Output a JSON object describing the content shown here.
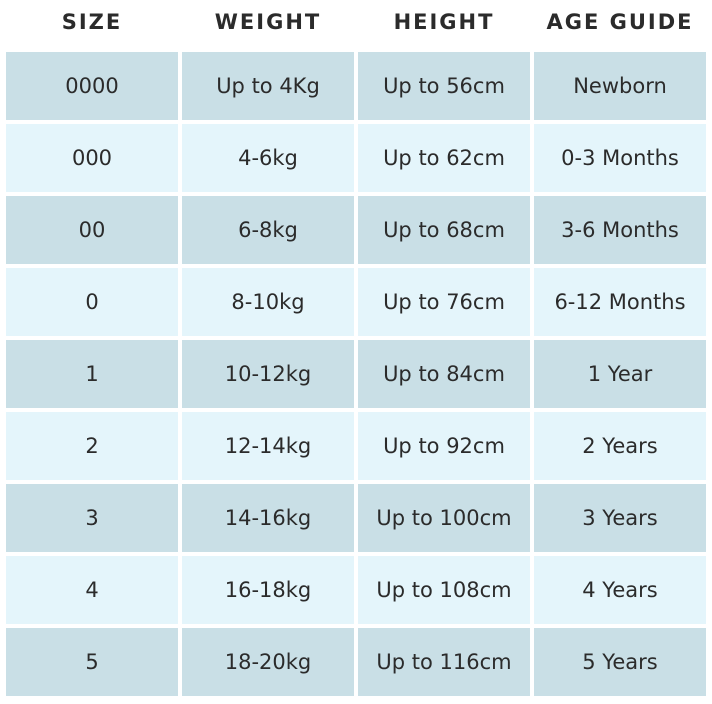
{
  "table": {
    "headers": [
      "SIZE",
      "WEIGHT",
      "HEIGHT",
      "AGE GUIDE"
    ],
    "rows": [
      [
        "0000",
        "Up to 4Kg",
        "Up to 56cm",
        "Newborn"
      ],
      [
        "000",
        "4-6kg",
        "Up to 62cm",
        "0-3 Months"
      ],
      [
        "00",
        "6-8kg",
        "Up to 68cm",
        "3-6 Months"
      ],
      [
        "0",
        "8-10kg",
        "Up to 76cm",
        "6-12 Months"
      ],
      [
        "1",
        "10-12kg",
        "Up to 84cm",
        "1 Year"
      ],
      [
        "2",
        "12-14kg",
        "Up to 92cm",
        "2 Years"
      ],
      [
        "3",
        "14-16kg",
        "Up to 100cm",
        "3 Years"
      ],
      [
        "4",
        "16-18kg",
        "Up to 108cm",
        "4 Years"
      ],
      [
        "5",
        "18-20kg",
        "Up to 116cm",
        "5 Years"
      ]
    ]
  }
}
